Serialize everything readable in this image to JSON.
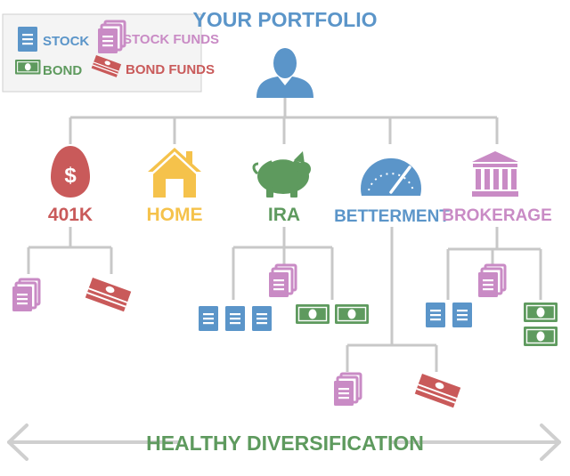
{
  "title": "YOUR PORTFOLIO",
  "legend": {
    "stock": "STOCK",
    "stock_funds": "STOCK FUNDS",
    "bond": "BOND",
    "bond_funds": "BOND FUNDS"
  },
  "accounts": {
    "k401": "401K",
    "home": "HOME",
    "ira": "IRA",
    "betterment": "BETTERMENT",
    "brokerage": "BROKERAGE"
  },
  "footer": "HEALTHY DIVERSIFICATION",
  "colors": {
    "stock": "#5b95c9",
    "stock_funds": "#c98bc5",
    "bond": "#5e9a5e",
    "bond_funds": "#c95a5a",
    "home": "#f5c24b",
    "line": "#c8c8c8",
    "title": "#5b95c9"
  },
  "icons": {
    "title": "person-icon",
    "k401": "egg-dollar-icon",
    "home": "house-icon",
    "ira": "piggy-bank-icon",
    "betterment": "speedometer-icon",
    "brokerage": "bank-building-icon"
  }
}
